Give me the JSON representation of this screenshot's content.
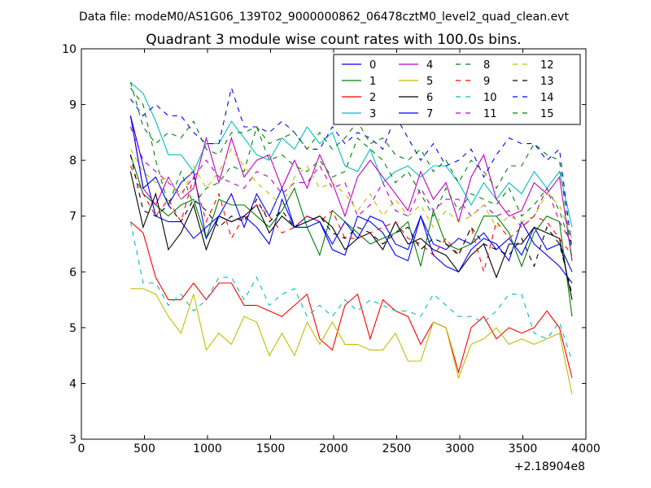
{
  "chart_data": {
    "type": "line",
    "suptitle": "Data file: modeM0/AS1G06_139T02_9000000862_06478cztM0_level2_quad_clean.evt",
    "title": "Quadrant 3 module wise count rates with 100.0s bins.",
    "xlabel": "",
    "ylabel": "",
    "xlim": [
      0,
      4000
    ],
    "ylim": [
      3,
      10
    ],
    "x_offset_label": "+2.18904e8",
    "xticks": [
      0,
      500,
      1000,
      1500,
      2000,
      2500,
      3000,
      3500,
      4000
    ],
    "xtick_labels": [
      "0",
      "500",
      "1000",
      "1500",
      "2000",
      "2500",
      "3000",
      "3500",
      "4000"
    ],
    "yticks": [
      3,
      4,
      5,
      6,
      7,
      8,
      9,
      10
    ],
    "ytick_labels": [
      "3",
      "4",
      "5",
      "6",
      "7",
      "8",
      "9",
      "10"
    ],
    "grid": false,
    "legend_position": "top-right",
    "x": [
      390,
      490,
      590,
      690,
      790,
      890,
      990,
      1090,
      1190,
      1290,
      1390,
      1490,
      1590,
      1690,
      1790,
      1890,
      1990,
      2090,
      2190,
      2290,
      2390,
      2490,
      2590,
      2690,
      2790,
      2890,
      2990,
      3090,
      3190,
      3290,
      3390,
      3490,
      3590,
      3690,
      3790,
      3890
    ],
    "series": [
      {
        "name": "0",
        "color": "#0000ff",
        "dash": false,
        "values": [
          8.8,
          7.9,
          7.0,
          6.9,
          6.9,
          6.6,
          6.8,
          7.0,
          6.9,
          7.0,
          6.8,
          6.5,
          7.3,
          6.8,
          7.0,
          6.9,
          6.4,
          6.3,
          7.0,
          6.9,
          6.7,
          6.3,
          6.2,
          7.0,
          6.5,
          6.4,
          6.6,
          6.5,
          6.7,
          6.4,
          6.6,
          6.3,
          6.8,
          6.4,
          6.5,
          6.0
        ]
      },
      {
        "name": "1",
        "color": "#008000",
        "dash": false,
        "values": [
          8.1,
          7.4,
          7.2,
          7.0,
          7.2,
          7.3,
          6.6,
          7.3,
          7.2,
          7.2,
          7.0,
          6.8,
          7.1,
          7.5,
          6.8,
          6.3,
          7.1,
          6.9,
          6.7,
          6.5,
          6.6,
          6.7,
          6.9,
          6.1,
          7.1,
          6.5,
          6.4,
          6.5,
          7.0,
          7.0,
          6.7,
          6.1,
          6.7,
          7.0,
          6.9,
          5.2
        ]
      },
      {
        "name": "2",
        "color": "#ff0000",
        "dash": false,
        "values": [
          6.9,
          6.7,
          5.9,
          5.5,
          5.5,
          5.8,
          5.5,
          5.8,
          5.8,
          5.4,
          5.4,
          5.3,
          5.2,
          5.4,
          5.6,
          4.8,
          4.6,
          5.4,
          5.6,
          4.8,
          5.5,
          5.3,
          5.2,
          4.7,
          5.1,
          5.0,
          4.2,
          5.0,
          5.2,
          4.8,
          5.0,
          4.9,
          5.0,
          5.3,
          5.0,
          4.1
        ]
      },
      {
        "name": "3",
        "color": "#00bfbf",
        "dash": false,
        "values": [
          9.4,
          9.2,
          8.7,
          8.1,
          8.1,
          7.8,
          8.3,
          8.3,
          8.7,
          8.4,
          8.1,
          8.0,
          8.4,
          8.2,
          8.6,
          8.3,
          8.5,
          7.9,
          7.8,
          8.2,
          7.6,
          7.8,
          7.9,
          7.7,
          7.9,
          7.9,
          7.6,
          7.2,
          7.6,
          7.3,
          7.6,
          7.4,
          7.8,
          7.5,
          7.8,
          6.8
        ]
      },
      {
        "name": "4",
        "color": "#bf00bf",
        "dash": false,
        "values": [
          8.8,
          7.5,
          7.2,
          7.7,
          7.3,
          7.5,
          8.4,
          7.6,
          8.4,
          7.7,
          8.0,
          8.1,
          7.5,
          8.0,
          7.5,
          8.1,
          7.6,
          7.0,
          7.7,
          8.0,
          7.7,
          7.4,
          7.1,
          7.8,
          7.3,
          7.6,
          6.9,
          7.7,
          8.1,
          7.3,
          7.0,
          7.1,
          7.6,
          7.4,
          7.7,
          6.2
        ]
      },
      {
        "name": "5",
        "color": "#bfbf00",
        "dash": false,
        "values": [
          5.7,
          5.7,
          5.6,
          5.2,
          4.9,
          5.6,
          4.6,
          4.9,
          4.7,
          5.2,
          5.1,
          4.5,
          4.9,
          4.5,
          5.1,
          4.7,
          5.1,
          4.7,
          4.7,
          4.6,
          4.6,
          4.9,
          4.4,
          4.4,
          5.1,
          5.0,
          4.1,
          4.7,
          4.8,
          5.0,
          4.7,
          4.8,
          4.7,
          4.8,
          4.9,
          3.8
        ]
      },
      {
        "name": "6",
        "color": "#000000",
        "dash": false,
        "values": [
          7.8,
          6.8,
          7.4,
          6.4,
          6.7,
          7.2,
          6.4,
          7.0,
          6.9,
          7.0,
          7.2,
          6.7,
          7.0,
          6.8,
          6.9,
          7.0,
          6.8,
          6.4,
          6.6,
          6.7,
          6.4,
          6.9,
          6.5,
          6.6,
          6.4,
          6.3,
          6.0,
          6.3,
          6.5,
          5.9,
          6.5,
          6.5,
          6.8,
          6.7,
          6.6,
          5.5
        ]
      },
      {
        "name": "7",
        "color": "#0000ff",
        "dash": false,
        "values": [
          8.8,
          7.5,
          7.7,
          7.2,
          7.6,
          7.8,
          6.6,
          7.0,
          7.4,
          6.8,
          7.4,
          7.0,
          7.5,
          6.8,
          6.8,
          6.9,
          6.5,
          6.9,
          6.6,
          7.0,
          6.9,
          6.5,
          6.4,
          7.0,
          6.3,
          6.1,
          6.0,
          6.4,
          6.6,
          6.5,
          6.2,
          6.9,
          6.5,
          6.3,
          6.1,
          5.8
        ]
      },
      {
        "name": "8",
        "color": "#008000",
        "dash": true,
        "values": [
          9.3,
          9.0,
          8.0,
          7.2,
          7.8,
          7.2,
          7.5,
          7.6,
          7.9,
          7.8,
          8.6,
          8.0,
          8.1,
          7.9,
          7.8,
          8.0,
          7.7,
          7.8,
          8.4,
          8.2,
          8.0,
          7.6,
          7.8,
          7.4,
          7.0,
          7.5,
          7.1,
          7.4,
          7.3,
          7.2,
          7.5,
          7.0,
          7.2,
          7.5,
          7.1,
          6.4
        ]
      },
      {
        "name": "9",
        "color": "#ff0000",
        "dash": true,
        "values": [
          7.9,
          7.4,
          7.0,
          7.3,
          6.9,
          7.7,
          6.9,
          7.4,
          6.6,
          7.0,
          7.2,
          7.0,
          6.7,
          6.8,
          7.0,
          6.9,
          7.1,
          6.6,
          6.6,
          6.7,
          6.8,
          6.9,
          6.6,
          6.5,
          6.3,
          6.6,
          6.3,
          6.8,
          6.0,
          6.9,
          6.6,
          6.8,
          7.0,
          6.9,
          6.6,
          6.3
        ]
      },
      {
        "name": "10",
        "color": "#00bfbf",
        "dash": true,
        "values": [
          6.9,
          5.8,
          5.8,
          5.4,
          5.6,
          5.3,
          5.5,
          5.9,
          5.9,
          5.5,
          5.9,
          5.4,
          5.6,
          5.7,
          5.2,
          5.4,
          5.2,
          5.5,
          5.3,
          5.5,
          5.4,
          5.3,
          5.3,
          5.2,
          5.6,
          5.4,
          5.2,
          5.2,
          5.1,
          5.3,
          5.6,
          5.6,
          4.9,
          4.8,
          5.1,
          4.4
        ]
      },
      {
        "name": "11",
        "color": "#bf00bf",
        "dash": true,
        "values": [
          8.6,
          8.0,
          7.8,
          7.6,
          7.4,
          7.7,
          8.0,
          7.7,
          7.6,
          7.5,
          7.8,
          7.7,
          7.4,
          7.6,
          7.6,
          7.9,
          7.5,
          7.6,
          7.0,
          7.2,
          7.6,
          7.1,
          7.0,
          7.5,
          7.1,
          7.3,
          7.3,
          7.0,
          7.2,
          7.0,
          7.1,
          6.8,
          7.0,
          7.5,
          6.9,
          6.5
        ]
      },
      {
        "name": "12",
        "color": "#bfbf00",
        "dash": true,
        "values": [
          8.2,
          7.8,
          7.6,
          7.7,
          7.3,
          7.9,
          7.5,
          7.8,
          8.2,
          7.9,
          7.6,
          7.4,
          7.2,
          7.7,
          7.9,
          7.5,
          7.6,
          7.4,
          7.1,
          7.4,
          7.0,
          7.3,
          7.0,
          7.2,
          6.8,
          7.1,
          6.9,
          7.0,
          7.2,
          6.8,
          7.0,
          6.9,
          7.0,
          7.4,
          7.2,
          6.6
        ]
      },
      {
        "name": "13",
        "color": "#000000",
        "dash": true,
        "values": [
          8.1,
          7.1,
          7.0,
          7.2,
          6.9,
          7.3,
          7.1,
          6.8,
          7.0,
          6.9,
          7.3,
          6.9,
          7.1,
          6.8,
          6.9,
          7.0,
          6.7,
          6.6,
          6.8,
          6.7,
          6.5,
          6.7,
          6.8,
          6.4,
          6.6,
          6.5,
          6.3,
          6.8,
          6.5,
          6.4,
          6.3,
          6.6,
          6.1,
          6.8,
          6.5,
          5.6
        ]
      },
      {
        "name": "14",
        "color": "#0000ff",
        "dash": true,
        "values": [
          9.1,
          8.8,
          9.0,
          8.8,
          8.8,
          8.5,
          8.3,
          8.3,
          9.3,
          8.6,
          8.6,
          8.5,
          8.7,
          8.5,
          8.2,
          8.2,
          8.6,
          8.3,
          8.5,
          8.4,
          8.2,
          8.8,
          8.4,
          8.0,
          8.3,
          7.9,
          8.0,
          8.2,
          7.7,
          8.1,
          8.4,
          8.3,
          8.3,
          8.0,
          8.2,
          6.4
        ]
      },
      {
        "name": "15",
        "color": "#008000",
        "dash": true,
        "values": [
          9.4,
          8.6,
          8.3,
          8.5,
          8.4,
          8.7,
          8.2,
          8.1,
          8.5,
          8.5,
          8.6,
          8.3,
          8.4,
          8.5,
          8.2,
          8.5,
          8.2,
          8.4,
          8.7,
          8.3,
          8.4,
          8.1,
          8.0,
          8.2,
          7.8,
          8.0,
          7.6,
          8.0,
          7.8,
          7.5,
          7.9,
          7.9,
          8.3,
          8.1,
          8.0,
          6.2
        ]
      }
    ]
  }
}
